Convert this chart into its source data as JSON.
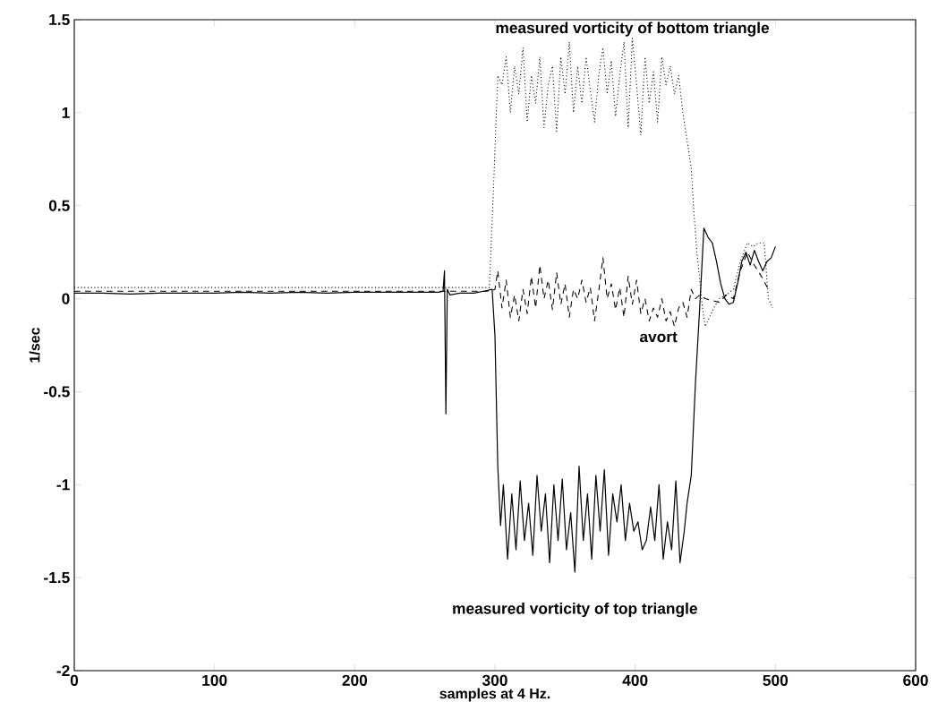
{
  "chart_data": {
    "type": "line",
    "xlabel": "samples at 4 Hz.",
    "ylabel": "1/sec",
    "xlim": [
      0,
      600
    ],
    "xticks": [
      0,
      100,
      200,
      300,
      400,
      500,
      600
    ],
    "ylim": [
      -2,
      1.5
    ],
    "yticks": [
      -2,
      -1.5,
      -1,
      -0.5,
      0,
      0.5,
      1,
      1.5
    ],
    "marker": "none",
    "series": [
      {
        "name": "measured vorticity of top triangle",
        "color": "#000000",
        "line_style": "solid",
        "x": [
          0,
          20,
          40,
          60,
          80,
          100,
          120,
          140,
          160,
          180,
          200,
          220,
          240,
          260,
          263,
          264,
          265,
          266,
          268,
          275,
          285,
          292,
          298,
          300,
          302,
          304,
          306,
          309,
          312,
          315,
          318,
          321,
          324,
          327,
          330,
          333,
          336,
          339,
          342,
          345,
          348,
          351,
          354,
          357,
          360,
          363,
          366,
          369,
          372,
          375,
          378,
          381,
          384,
          387,
          390,
          393,
          396,
          399,
          402,
          405,
          408,
          411,
          414,
          417,
          420,
          423,
          426,
          429,
          432,
          435,
          437,
          440,
          443,
          446,
          449,
          452,
          455,
          458,
          461,
          464,
          467,
          470,
          473,
          476,
          479,
          482,
          485,
          488,
          491,
          494,
          497,
          500
        ],
        "values": [
          0.03,
          0.03,
          0.025,
          0.03,
          0.03,
          0.03,
          0.035,
          0.03,
          0.035,
          0.03,
          0.035,
          0.035,
          0.035,
          0.035,
          0.04,
          0.15,
          -0.62,
          0.05,
          0.02,
          0.03,
          0.03,
          0.04,
          0.05,
          -0.2,
          -0.9,
          -1.22,
          -1.0,
          -1.4,
          -1.05,
          -1.35,
          -0.98,
          -1.3,
          -1.1,
          -1.38,
          -0.95,
          -1.25,
          -1.05,
          -1.42,
          -1.0,
          -1.3,
          -0.97,
          -1.35,
          -1.15,
          -1.47,
          -0.9,
          -1.3,
          -1.05,
          -1.4,
          -0.95,
          -1.25,
          -0.92,
          -1.38,
          -1.05,
          -1.2,
          -1.0,
          -1.3,
          -1.1,
          -1.25,
          -1.2,
          -1.35,
          -1.3,
          -1.12,
          -1.3,
          -1.0,
          -1.4,
          -1.2,
          -1.35,
          -0.98,
          -1.42,
          -1.25,
          -1.1,
          -0.95,
          -0.45,
          -0.05,
          0.38,
          0.33,
          0.3,
          0.2,
          0.08,
          0.0,
          -0.03,
          -0.02,
          0.08,
          0.2,
          0.25,
          0.18,
          0.26,
          0.2,
          0.15,
          0.2,
          0.22,
          0.28
        ]
      },
      {
        "name": "measured vorticity of bottom triangle",
        "color": "#000000",
        "line_style": "dotted",
        "x": [
          0,
          20,
          40,
          60,
          80,
          100,
          120,
          140,
          160,
          180,
          200,
          220,
          240,
          260,
          280,
          296,
          299,
          302,
          305,
          308,
          311,
          314,
          317,
          320,
          323,
          326,
          329,
          332,
          335,
          338,
          341,
          344,
          347,
          350,
          353,
          356,
          359,
          362,
          365,
          368,
          371,
          374,
          377,
          380,
          383,
          386,
          389,
          392,
          395,
          398,
          401,
          404,
          407,
          410,
          413,
          416,
          419,
          422,
          425,
          428,
          431,
          434,
          437,
          440,
          442,
          444,
          446,
          448,
          450,
          453,
          456,
          460,
          465,
          470,
          475,
          480,
          484,
          488,
          492,
          495,
          498
        ],
        "values": [
          0.06,
          0.06,
          0.06,
          0.06,
          0.06,
          0.06,
          0.06,
          0.06,
          0.06,
          0.06,
          0.06,
          0.06,
          0.06,
          0.06,
          0.06,
          0.06,
          0.6,
          1.2,
          1.15,
          1.3,
          1.0,
          1.25,
          1.1,
          1.35,
          0.95,
          1.2,
          1.05,
          1.3,
          0.92,
          1.15,
          1.25,
          0.9,
          1.3,
          1.1,
          1.38,
          1.0,
          1.25,
          1.05,
          1.3,
          1.12,
          0.95,
          1.2,
          1.35,
          1.1,
          1.28,
          0.98,
          1.2,
          1.38,
          0.92,
          1.4,
          1.15,
          0.88,
          1.3,
          1.05,
          1.22,
          0.95,
          1.3,
          1.15,
          1.25,
          1.1,
          1.2,
          1.0,
          0.85,
          0.7,
          0.45,
          0.25,
          0.1,
          -0.05,
          -0.15,
          -0.1,
          -0.05,
          0.0,
          0.02,
          0.05,
          0.2,
          0.3,
          0.28,
          0.3,
          0.3,
          0.0,
          -0.05
        ]
      },
      {
        "name": "avort",
        "color": "#000000",
        "line_style": "dashed",
        "x": [
          0,
          20,
          40,
          60,
          80,
          100,
          120,
          140,
          160,
          180,
          200,
          220,
          240,
          260,
          280,
          296,
          300,
          302,
          305,
          308,
          311,
          314,
          317,
          320,
          323,
          326,
          329,
          332,
          335,
          338,
          341,
          344,
          347,
          350,
          353,
          356,
          359,
          362,
          365,
          368,
          371,
          374,
          377,
          380,
          383,
          386,
          389,
          392,
          395,
          398,
          401,
          404,
          407,
          410,
          413,
          416,
          419,
          422,
          425,
          428,
          431,
          434,
          437,
          440,
          443,
          446,
          450,
          455,
          460,
          465,
          470,
          475,
          480,
          485,
          490,
          495
        ],
        "values": [
          0.04,
          0.04,
          0.04,
          0.04,
          0.04,
          0.04,
          0.04,
          0.04,
          0.04,
          0.04,
          0.04,
          0.04,
          0.04,
          0.04,
          0.04,
          0.04,
          0.05,
          0.15,
          -0.05,
          0.1,
          -0.1,
          0.02,
          -0.12,
          0.05,
          -0.08,
          0.12,
          -0.05,
          0.18,
          0.0,
          0.1,
          -0.06,
          0.14,
          -0.03,
          0.08,
          -0.1,
          0.05,
          0.0,
          0.1,
          -0.02,
          0.06,
          -0.12,
          0.04,
          0.22,
          0.0,
          0.08,
          -0.06,
          0.06,
          -0.1,
          0.12,
          -0.03,
          0.1,
          -0.08,
          0.0,
          -0.12,
          -0.05,
          -0.1,
          0.0,
          -0.12,
          -0.07,
          -0.15,
          -0.05,
          -0.02,
          -0.1,
          0.05,
          0.0,
          0.02,
          0.0,
          -0.01,
          -0.02,
          0.02,
          0.0,
          0.15,
          0.25,
          0.18,
          0.12,
          0.05
        ]
      }
    ]
  }
}
